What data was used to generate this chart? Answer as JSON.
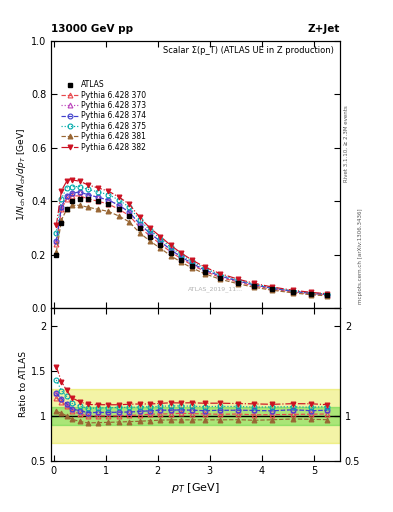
{
  "title_top_left": "13000 GeV pp",
  "title_top_right": "Z+Jet",
  "plot_title": "Scalar Σ(p_T) (ATLAS UE in Z production)",
  "ylabel_main": "1/N_{ch} dN_{ch}/dp_T [GeV]",
  "ylabel_ratio": "Ratio to ATLAS",
  "xlabel": "p_T [GeV]",
  "watermark": "ATLAS_2019_11...",
  "rivet_label": "Rivet 3.1.10, ≥ 2.3M events",
  "mcplots_label": "mcplots.cern.ch [arXiv:1306.3436]",
  "pt_values": [
    0.05,
    0.15,
    0.25,
    0.35,
    0.5,
    0.65,
    0.85,
    1.05,
    1.25,
    1.45,
    1.65,
    1.85,
    2.05,
    2.25,
    2.45,
    2.65,
    2.9,
    3.2,
    3.55,
    3.85,
    4.2,
    4.6,
    4.95,
    5.25
  ],
  "atlas_data": [
    0.2,
    0.32,
    0.37,
    0.4,
    0.41,
    0.41,
    0.4,
    0.39,
    0.37,
    0.345,
    0.3,
    0.265,
    0.235,
    0.205,
    0.18,
    0.158,
    0.135,
    0.113,
    0.095,
    0.082,
    0.07,
    0.059,
    0.052,
    0.048
  ],
  "p370_data": [
    0.24,
    0.37,
    0.41,
    0.42,
    0.42,
    0.41,
    0.4,
    0.39,
    0.37,
    0.347,
    0.303,
    0.27,
    0.24,
    0.21,
    0.185,
    0.162,
    0.138,
    0.115,
    0.097,
    0.083,
    0.071,
    0.06,
    0.053,
    0.049
  ],
  "p373_data": [
    0.25,
    0.38,
    0.42,
    0.43,
    0.435,
    0.425,
    0.415,
    0.405,
    0.385,
    0.36,
    0.315,
    0.28,
    0.25,
    0.218,
    0.192,
    0.168,
    0.143,
    0.12,
    0.101,
    0.087,
    0.074,
    0.063,
    0.055,
    0.051
  ],
  "p374_data": [
    0.25,
    0.38,
    0.42,
    0.43,
    0.435,
    0.425,
    0.415,
    0.405,
    0.385,
    0.36,
    0.315,
    0.28,
    0.25,
    0.218,
    0.192,
    0.168,
    0.143,
    0.12,
    0.101,
    0.087,
    0.074,
    0.063,
    0.055,
    0.051
  ],
  "p375_data": [
    0.28,
    0.41,
    0.45,
    0.455,
    0.455,
    0.445,
    0.435,
    0.425,
    0.405,
    0.378,
    0.33,
    0.292,
    0.26,
    0.228,
    0.2,
    0.175,
    0.149,
    0.125,
    0.105,
    0.09,
    0.077,
    0.065,
    0.057,
    0.053
  ],
  "p381_data": [
    0.21,
    0.33,
    0.37,
    0.385,
    0.385,
    0.378,
    0.37,
    0.362,
    0.345,
    0.323,
    0.282,
    0.251,
    0.224,
    0.196,
    0.172,
    0.151,
    0.129,
    0.108,
    0.091,
    0.078,
    0.067,
    0.057,
    0.05,
    0.046
  ],
  "p382_data": [
    0.31,
    0.44,
    0.475,
    0.48,
    0.475,
    0.462,
    0.45,
    0.438,
    0.416,
    0.39,
    0.34,
    0.3,
    0.268,
    0.235,
    0.206,
    0.181,
    0.154,
    0.129,
    0.108,
    0.093,
    0.079,
    0.067,
    0.059,
    0.054
  ],
  "ratio_370": [
    1.2,
    1.16,
    1.11,
    1.05,
    1.024,
    1.0,
    1.0,
    1.0,
    1.0,
    1.006,
    1.01,
    1.019,
    1.021,
    1.024,
    1.028,
    1.025,
    1.022,
    1.018,
    1.021,
    1.012,
    1.014,
    1.017,
    1.019,
    1.021
  ],
  "ratio_373": [
    1.25,
    1.19,
    1.135,
    1.075,
    1.06,
    1.037,
    1.038,
    1.038,
    1.041,
    1.043,
    1.05,
    1.057,
    1.064,
    1.063,
    1.067,
    1.063,
    1.059,
    1.062,
    1.063,
    1.061,
    1.057,
    1.068,
    1.058,
    1.063
  ],
  "ratio_374": [
    1.25,
    1.19,
    1.135,
    1.075,
    1.06,
    1.037,
    1.038,
    1.038,
    1.041,
    1.043,
    1.05,
    1.057,
    1.064,
    1.063,
    1.067,
    1.063,
    1.059,
    1.062,
    1.063,
    1.061,
    1.057,
    1.068,
    1.058,
    1.063
  ],
  "ratio_375": [
    1.4,
    1.28,
    1.216,
    1.14,
    1.11,
    1.085,
    1.088,
    1.09,
    1.095,
    1.094,
    1.1,
    1.102,
    1.106,
    1.112,
    1.111,
    1.108,
    1.104,
    1.106,
    1.105,
    1.098,
    1.1,
    1.102,
    1.096,
    1.104
  ],
  "ratio_381": [
    1.05,
    1.03,
    1.0,
    0.963,
    0.939,
    0.922,
    0.925,
    0.928,
    0.932,
    0.936,
    0.94,
    0.947,
    0.953,
    0.956,
    0.956,
    0.956,
    0.956,
    0.956,
    0.958,
    0.951,
    0.957,
    0.966,
    0.962,
    0.958
  ],
  "ratio_382": [
    1.55,
    1.38,
    1.284,
    1.2,
    1.159,
    1.127,
    1.125,
    1.124,
    1.124,
    1.13,
    1.133,
    1.132,
    1.14,
    1.146,
    1.144,
    1.146,
    1.141,
    1.142,
    1.137,
    1.134,
    1.129,
    1.136,
    1.135,
    1.125
  ],
  "shade_green_lo": 0.9,
  "shade_green_hi": 1.1,
  "shade_yellow_lo": 0.7,
  "shade_yellow_hi": 1.3,
  "color_370": "#e8474c",
  "color_373": "#bb44bb",
  "color_374": "#4040cc",
  "color_375": "#00aaaa",
  "color_381": "#996633",
  "color_382": "#cc1122",
  "color_atlas": "#000000",
  "bg_color": "#ffffff"
}
